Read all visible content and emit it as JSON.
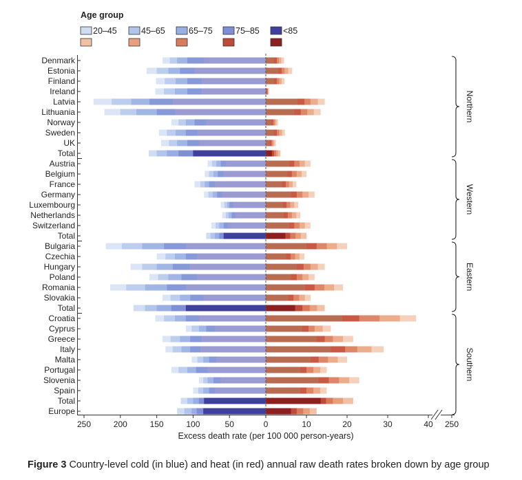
{
  "chart_data": {
    "type": "bar",
    "orientation": "horizontal-diverging",
    "legend": {
      "title": "Age group",
      "labels": [
        "20–45",
        "45–65",
        "65–75",
        "75–85",
        "<85"
      ]
    },
    "colors": {
      "cold": [
        "#cfdcf1",
        "#b3c4ea",
        "#9aaee3",
        "#7f8fd6",
        "#3f3f9e"
      ],
      "heat": [
        "#f2c1a5",
        "#e8a07c",
        "#d97a5c",
        "#c04a3a",
        "#8c2020"
      ],
      "cold_country": "#9a9bd3",
      "heat_country": "#b86c52"
    },
    "xlabel": "Excess death rate (per 100 000 person-years)",
    "cold_ticks": [
      "250",
      "200",
      "150",
      "100",
      "50",
      "0"
    ],
    "heat_ticks": [
      "10",
      "20",
      "30",
      "40"
    ],
    "heat_break_tick": "250",
    "xlim_cold": [
      0,
      250
    ],
    "xlim_heat": [
      0,
      40
    ],
    "groups": [
      {
        "name": "Northern",
        "rows": [
          {
            "label": "Denmark",
            "cold": [
              142,
              132,
              122,
              108,
              85
            ],
            "heat": [
              4.5,
              3.8,
              3.2,
              2.7,
              2.0
            ]
          },
          {
            "label": "Estonia",
            "cold": [
              164,
              150,
              134,
              118,
              98
            ],
            "heat": [
              6.5,
              5.5,
              4.6,
              3.9,
              3.0
            ]
          },
          {
            "label": "Finland",
            "cold": [
              151,
              139,
              124,
              108,
              88
            ],
            "heat": [
              4.6,
              3.9,
              3.3,
              2.7,
              2.0
            ]
          },
          {
            "label": "Ireland",
            "cold": [
              152,
              140,
              125,
              108,
              88
            ],
            "heat": [
              0.8,
              0.6,
              0.5,
              0.4,
              0.3
            ]
          },
          {
            "label": "Latvia",
            "cold": [
              237,
              212,
              185,
              160,
              128
            ],
            "heat": [
              14.5,
              12.8,
              11.0,
              9.5,
              7.8
            ]
          },
          {
            "label": "Lithuania",
            "cold": [
              222,
              200,
              178,
              150,
              125
            ],
            "heat": [
              13.5,
              11.8,
              10.2,
              8.6,
              7.0
            ]
          },
          {
            "label": "Norway",
            "cold": [
              130,
              120,
              110,
              98,
              82
            ],
            "heat": [
              3.0,
              2.6,
              2.2,
              1.8,
              1.4
            ]
          },
          {
            "label": "Sweden",
            "cold": [
              147,
              136,
              124,
              110,
              94
            ],
            "heat": [
              4.7,
              4.0,
              3.3,
              2.7,
              2.0
            ]
          },
          {
            "label": "UK",
            "cold": [
              144,
              133,
              122,
              108,
              92
            ],
            "heat": [
              2.5,
              2.1,
              1.7,
              1.4,
              1.0
            ]
          },
          {
            "label": "Total",
            "cold": [
              161,
              150,
              136,
              120,
              100
            ],
            "heat": [
              3.6,
              3.0,
              2.5,
              2.0,
              1.5
            ],
            "total": true
          }
        ]
      },
      {
        "name": "Western",
        "rows": [
          {
            "label": "Austria",
            "cold": [
              80,
              74,
              68,
              62,
              55
            ],
            "heat": [
              11.0,
              9.6,
              8.3,
              7.0,
              5.8
            ]
          },
          {
            "label": "Belgium",
            "cold": [
              84,
              78,
              72,
              66,
              58
            ],
            "heat": [
              10.0,
              8.8,
              7.6,
              6.4,
              5.3
            ]
          },
          {
            "label": "France",
            "cold": [
              98,
              90,
              84,
              78,
              70
            ],
            "heat": [
              7.5,
              6.6,
              5.7,
              4.9,
              4.0
            ]
          },
          {
            "label": "Germany",
            "cold": [
              85,
              79,
              73,
              67,
              60
            ],
            "heat": [
              12.0,
              10.5,
              9.0,
              7.6,
              6.2
            ]
          },
          {
            "label": "Luxembourg",
            "cold": [
              62,
              57,
              53,
              50,
              45
            ],
            "heat": [
              8.0,
              7.0,
              6.0,
              5.1,
              4.2
            ]
          },
          {
            "label": "Netherlands",
            "cold": [
              60,
              55,
              51,
              47,
              42
            ],
            "heat": [
              8.5,
              7.5,
              6.4,
              5.4,
              4.4
            ]
          },
          {
            "label": "Switzerland",
            "cold": [
              75,
              69,
              64,
              58,
              52
            ],
            "heat": [
              11.0,
              9.6,
              8.3,
              7.0,
              5.8
            ]
          },
          {
            "label": "Total",
            "cold": [
              82,
              76,
              70,
              64,
              58
            ],
            "heat": [
              10.0,
              8.6,
              7.3,
              6.0,
              4.8
            ],
            "total": true
          }
        ]
      },
      {
        "name": "Eastern",
        "rows": [
          {
            "label": "Bulgaria",
            "cold": [
              220,
              198,
              170,
              140,
              110
            ],
            "heat": [
              20.0,
              17.5,
              15.0,
              12.5,
              10.0
            ]
          },
          {
            "label": "Czechia",
            "cold": [
              150,
              138,
              125,
              110,
              95
            ],
            "heat": [
              9.5,
              8.3,
              7.2,
              6.1,
              5.0
            ]
          },
          {
            "label": "Hungary",
            "cold": [
              186,
              170,
              150,
              128,
              105
            ],
            "heat": [
              14.5,
              12.8,
              11.0,
              9.3,
              7.6
            ]
          },
          {
            "label": "Poland",
            "cold": [
              160,
              148,
              134,
              116,
              95
            ],
            "heat": [
              12.0,
              10.5,
              9.0,
              7.6,
              6.2
            ]
          },
          {
            "label": "Romania",
            "cold": [
              214,
              192,
              166,
              136,
              110
            ],
            "heat": [
              19.0,
              16.8,
              14.4,
              12.0,
              9.7
            ]
          },
          {
            "label": "Slovakia",
            "cold": [
              142,
              131,
              118,
              104,
              86
            ],
            "heat": [
              11.0,
              9.6,
              8.2,
              6.8,
              5.5
            ]
          },
          {
            "label": "Total",
            "cold": [
              182,
              166,
              150,
              130,
              110
            ],
            "heat": [
              14.5,
              12.6,
              10.8,
              9.0,
              7.2
            ],
            "total": true
          }
        ]
      },
      {
        "name": "Southern",
        "rows": [
          {
            "label": "Croatia",
            "cold": [
              152,
              140,
              125,
              110,
              92
            ],
            "heat": [
              37.0,
              33.0,
              28.0,
              23.0,
              18.8
            ]
          },
          {
            "label": "Cyprus",
            "cold": [
              110,
              102,
              92,
              82,
              70
            ],
            "heat": [
              16.0,
              14.0,
              12.0,
              10.5,
              9.0
            ]
          },
          {
            "label": "Greece",
            "cold": [
              142,
              131,
              118,
              104,
              88
            ],
            "heat": [
              21.5,
              19.0,
              16.5,
              14.5,
              12.5
            ]
          },
          {
            "label": "Italy",
            "cold": [
              138,
              128,
              116,
              104,
              90
            ],
            "heat": [
              29.0,
              26.0,
              22.5,
              19.5,
              16.0
            ]
          },
          {
            "label": "Malta",
            "cold": [
              102,
              94,
              86,
              78,
              68
            ],
            "heat": [
              20.0,
              17.7,
              15.3,
              13.0,
              11.0
            ]
          },
          {
            "label": "Portugal",
            "cold": [
              130,
              120,
              108,
              96,
              80
            ],
            "heat": [
              15.0,
              13.4,
              11.7,
              10.0,
              8.5
            ]
          },
          {
            "label": "Slovenia",
            "cold": [
              92,
              86,
              80,
              72,
              62
            ],
            "heat": [
              23.0,
              20.5,
              18.0,
              15.5,
              13.0
            ]
          },
          {
            "label": "Spain",
            "cold": [
              100,
              93,
              86,
              78,
              70
            ],
            "heat": [
              15.0,
              13.4,
              11.7,
              10.0,
              8.5
            ]
          },
          {
            "label": "Total",
            "cold": [
              117,
              108,
              100,
              92,
              85
            ],
            "heat": [
              21.5,
              19.0,
              16.5,
              14.8,
              13.5
            ],
            "total": true
          },
          {
            "label": "Europe",
            "cold": [
              122,
              112,
              102,
              95,
              86
            ],
            "heat": [
              12.5,
              10.8,
              9.2,
              7.6,
              6.2
            ],
            "total": true
          }
        ]
      }
    ]
  },
  "caption": {
    "label": "Figure 3",
    "text": "Country-level cold (in blue) and heat (in red) annual raw death rates broken down by age group"
  }
}
